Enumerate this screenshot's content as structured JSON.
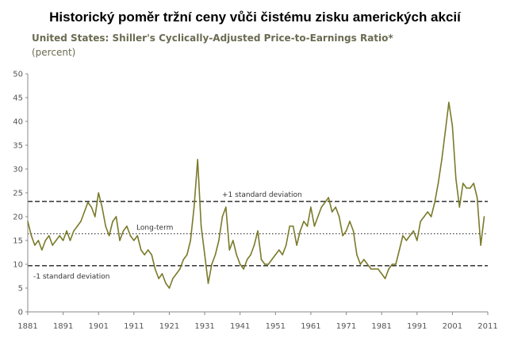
{
  "header": {
    "title": "Historický poměr tržní ceny vůči čistému zisku amerických akcií",
    "subtitle": "United States: Shiller's Cyclically-Adjusted Price-to-Earnings Ratio*",
    "unit": "(percent)"
  },
  "colors": {
    "line": "#7a7a2a",
    "reference": "#222222",
    "axis": "#888888"
  },
  "chart_data": {
    "type": "line",
    "title": "United States: Shiller's Cyclically-Adjusted Price-to-Earnings Ratio*",
    "ylabel": "(percent)",
    "xlim": [
      1881,
      2011
    ],
    "ylim": [
      0,
      50
    ],
    "grid": false,
    "x_ticks": [
      "1881",
      "1891",
      "1901",
      "1911",
      "1921",
      "1931",
      "1941",
      "1951",
      "1961",
      "1971",
      "1981",
      "1991",
      "2001",
      "2011"
    ],
    "y_ticks": [
      "0",
      "5",
      "10",
      "15",
      "20",
      "25",
      "30",
      "35",
      "40",
      "45",
      "50"
    ],
    "series": [
      {
        "points": [
          [
            1881,
            19
          ],
          [
            1882,
            16
          ],
          [
            1883,
            14
          ],
          [
            1884,
            15
          ],
          [
            1885,
            13
          ],
          [
            1886,
            15
          ],
          [
            1887,
            16
          ],
          [
            1888,
            14
          ],
          [
            1889,
            15
          ],
          [
            1890,
            16
          ],
          [
            1891,
            15
          ],
          [
            1892,
            17
          ],
          [
            1893,
            15
          ],
          [
            1894,
            17
          ],
          [
            1895,
            18
          ],
          [
            1896,
            19
          ],
          [
            1897,
            21
          ],
          [
            1898,
            23
          ],
          [
            1899,
            22
          ],
          [
            1900,
            20
          ],
          [
            1901,
            25
          ],
          [
            1902,
            22
          ],
          [
            1903,
            18
          ],
          [
            1904,
            16
          ],
          [
            1905,
            19
          ],
          [
            1906,
            20
          ],
          [
            1907,
            15
          ],
          [
            1908,
            17
          ],
          [
            1909,
            18
          ],
          [
            1910,
            16
          ],
          [
            1911,
            15
          ],
          [
            1912,
            16
          ],
          [
            1913,
            13
          ],
          [
            1914,
            12
          ],
          [
            1915,
            13
          ],
          [
            1916,
            12
          ],
          [
            1917,
            9
          ],
          [
            1918,
            7
          ],
          [
            1919,
            8
          ],
          [
            1920,
            6
          ],
          [
            1921,
            5
          ],
          [
            1922,
            7
          ],
          [
            1923,
            8
          ],
          [
            1924,
            9
          ],
          [
            1925,
            11
          ],
          [
            1926,
            12
          ],
          [
            1927,
            15
          ],
          [
            1928,
            22
          ],
          [
            1929,
            32
          ],
          [
            1930,
            18
          ],
          [
            1931,
            12
          ],
          [
            1932,
            6
          ],
          [
            1933,
            10
          ],
          [
            1934,
            12
          ],
          [
            1935,
            15
          ],
          [
            1936,
            20
          ],
          [
            1937,
            22
          ],
          [
            1938,
            13
          ],
          [
            1939,
            15
          ],
          [
            1940,
            12
          ],
          [
            1941,
            10
          ],
          [
            1942,
            9
          ],
          [
            1943,
            11
          ],
          [
            1944,
            12
          ],
          [
            1945,
            14
          ],
          [
            1946,
            17
          ],
          [
            1947,
            11
          ],
          [
            1948,
            10
          ],
          [
            1949,
            10
          ],
          [
            1950,
            11
          ],
          [
            1951,
            12
          ],
          [
            1952,
            13
          ],
          [
            1953,
            12
          ],
          [
            1954,
            14
          ],
          [
            1955,
            18
          ],
          [
            1956,
            18
          ],
          [
            1957,
            14
          ],
          [
            1958,
            17
          ],
          [
            1959,
            19
          ],
          [
            1960,
            18
          ],
          [
            1961,
            22
          ],
          [
            1962,
            18
          ],
          [
            1963,
            20
          ],
          [
            1964,
            22
          ],
          [
            1965,
            23
          ],
          [
            1966,
            24
          ],
          [
            1967,
            21
          ],
          [
            1968,
            22
          ],
          [
            1969,
            20
          ],
          [
            1970,
            16
          ],
          [
            1971,
            17
          ],
          [
            1972,
            19
          ],
          [
            1973,
            17
          ],
          [
            1974,
            12
          ],
          [
            1975,
            10
          ],
          [
            1976,
            11
          ],
          [
            1977,
            10
          ],
          [
            1978,
            9
          ],
          [
            1979,
            9
          ],
          [
            1980,
            9
          ],
          [
            1981,
            8
          ],
          [
            1982,
            7
          ],
          [
            1983,
            9
          ],
          [
            1984,
            10
          ],
          [
            1985,
            10
          ],
          [
            1986,
            13
          ],
          [
            1987,
            16
          ],
          [
            1988,
            15
          ],
          [
            1989,
            16
          ],
          [
            1990,
            17
          ],
          [
            1991,
            15
          ],
          [
            1992,
            19
          ],
          [
            1993,
            20
          ],
          [
            1994,
            21
          ],
          [
            1995,
            20
          ],
          [
            1996,
            23
          ],
          [
            1997,
            27
          ],
          [
            1998,
            32
          ],
          [
            1999,
            38
          ],
          [
            2000,
            44
          ],
          [
            2001,
            39
          ],
          [
            2002,
            28
          ],
          [
            2003,
            22
          ],
          [
            2004,
            27
          ],
          [
            2005,
            26
          ],
          [
            2006,
            26
          ],
          [
            2007,
            27
          ],
          [
            2008,
            24
          ],
          [
            2009,
            14
          ],
          [
            2010,
            20
          ]
        ]
      }
    ],
    "reference_lines": [
      {
        "label": "+1 standard deviation",
        "y": 23.2,
        "style": "dashed"
      },
      {
        "label": "Long-term",
        "y": 16.4,
        "style": "dotted"
      },
      {
        "label": "-1 standard deviation",
        "y": 9.7,
        "style": "dashed"
      }
    ]
  }
}
